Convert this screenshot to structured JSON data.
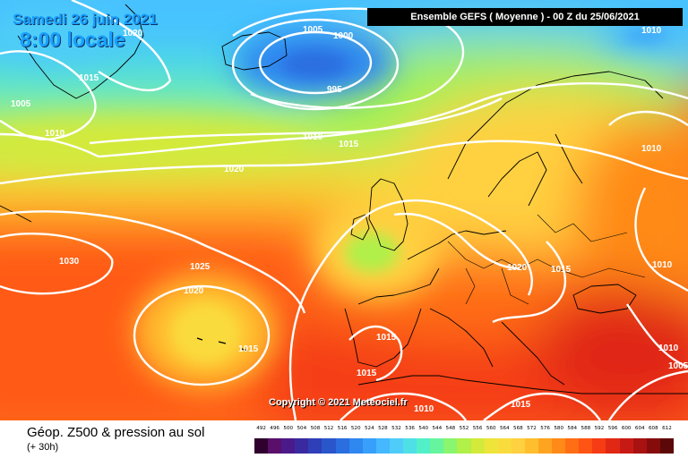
{
  "header": {
    "date": "Samedi 26 juin 2021",
    "time": "8:00 locale",
    "model": "Ensemble GEFS  ( Moyenne )  - 00 Z du 25/06/2021"
  },
  "map": {
    "type": "weather-chart",
    "isobar_labels": [
      {
        "value": "1020",
        "lon": "-45",
        "lat": "72"
      },
      {
        "value": "1005",
        "lon": "-10",
        "lat": "73"
      },
      {
        "value": "1000",
        "lon": "-6",
        "lat": "72"
      },
      {
        "value": "995",
        "lon": "-8",
        "lat": "66"
      },
      {
        "value": "1010",
        "lon": "30",
        "lat": "72"
      },
      {
        "value": "1015",
        "lon": "-50",
        "lat": "65"
      },
      {
        "value": "1005",
        "lon": "-60",
        "lat": "62"
      },
      {
        "value": "1010",
        "lon": "-55",
        "lat": "58"
      },
      {
        "value": "1010",
        "lon": "-12",
        "lat": "60"
      },
      {
        "value": "1015",
        "lon": "-5",
        "lat": "59"
      },
      {
        "value": "1010",
        "lon": "35",
        "lat": "60"
      },
      {
        "value": "1020",
        "lon": "-25",
        "lat": "55"
      },
      {
        "value": "1030",
        "lon": "-50",
        "lat": "45"
      },
      {
        "value": "1025",
        "lon": "-30",
        "lat": "44"
      },
      {
        "value": "1020",
        "lon": "-30",
        "lat": "41"
      },
      {
        "value": "1015",
        "lon": "-20",
        "lat": "36"
      },
      {
        "value": "1020",
        "lon": "15",
        "lat": "48"
      },
      {
        "value": "1015",
        "lon": "20",
        "lat": "48"
      },
      {
        "value": "1010",
        "lon": "40",
        "lat": "48"
      },
      {
        "value": "1015",
        "lon": "0",
        "lat": "37"
      },
      {
        "value": "1010",
        "lon": "35",
        "lat": "38"
      },
      {
        "value": "1015",
        "lon": "-5",
        "lat": "33"
      },
      {
        "value": "1010",
        "lon": "8",
        "lat": "28"
      },
      {
        "value": "1015",
        "lon": "20",
        "lat": "28"
      },
      {
        "value": "1005",
        "lon": "45",
        "lat": "35"
      }
    ],
    "copyright": "Copyright © 2021 Meteociel.fr"
  },
  "footer": {
    "title": "Géop. Z500 & pression au sol",
    "subtitle": "(+ 30h)"
  },
  "legend": {
    "labels": [
      "492",
      "496",
      "500",
      "504",
      "508",
      "512",
      "516",
      "520",
      "524",
      "528",
      "532",
      "536",
      "540",
      "544",
      "548",
      "552",
      "556",
      "560",
      "564",
      "568",
      "572",
      "576",
      "580",
      "584",
      "588",
      "592",
      "596",
      "600",
      "604",
      "608",
      "612"
    ],
    "colors": [
      "#30002e",
      "#5a0f6a",
      "#4b1a8a",
      "#3a2aa0",
      "#2e3fb8",
      "#2a56cc",
      "#2a6ee0",
      "#2f87f0",
      "#38a0fa",
      "#45b8ff",
      "#4fcdf8",
      "#4fe0e6",
      "#52f0c8",
      "#66f59e",
      "#8af56e",
      "#b0f048",
      "#d4ea3a",
      "#eee43a",
      "#fadb3e",
      "#ffd040",
      "#ffbe2e",
      "#ffa420",
      "#ff8a18",
      "#ff6e14",
      "#ff5414",
      "#f53c14",
      "#e02814",
      "#c81a14",
      "#a81210",
      "#860c0c",
      "#5c0808"
    ]
  }
}
